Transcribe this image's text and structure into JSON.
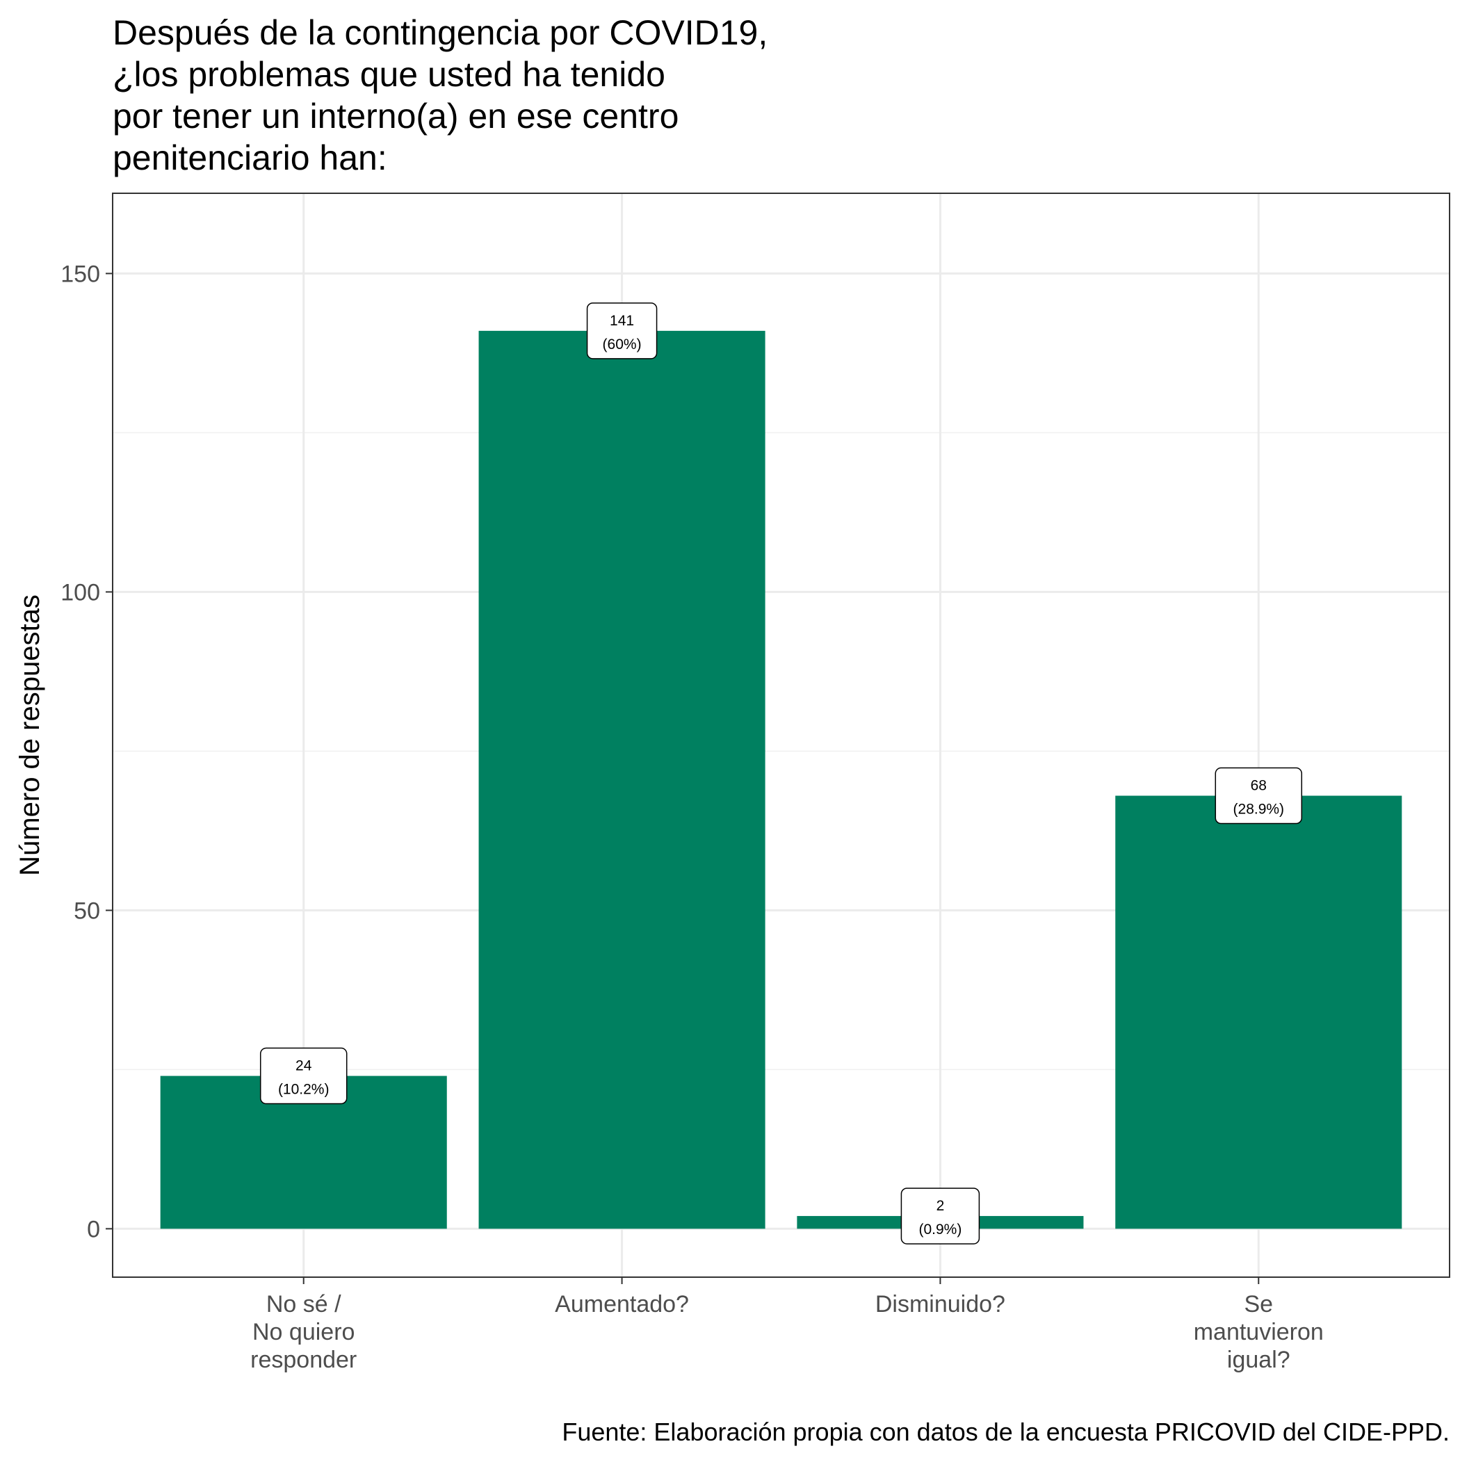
{
  "chart_data": {
    "type": "bar",
    "title_lines": [
      "Después de la contingencia por COVID19,",
      "¿los problemas que usted ha tenido",
      "por tener un interno(a) en ese centro",
      "penitenciario han:"
    ],
    "ylabel": "Número de respuestas",
    "xlabel": "",
    "categories": [
      [
        "No sé /",
        "No quiero",
        "responder"
      ],
      [
        "Aumentado?"
      ],
      [
        "Disminuido?"
      ],
      [
        "Se",
        "mantuvieron",
        "igual?"
      ]
    ],
    "values": [
      24,
      141,
      2,
      68
    ],
    "labels": [
      [
        "24",
        "(10.2%)"
      ],
      [
        "141",
        "(60%)"
      ],
      [
        "2",
        "(0.9%)"
      ],
      [
        "68",
        "(28.9%)"
      ]
    ],
    "yticks": [
      0,
      50,
      100,
      150
    ],
    "yticks_minor": [
      25,
      75,
      125
    ],
    "ylim": [
      -7.6,
      162.6
    ],
    "grid": true,
    "bar_color": "#008060",
    "caption": "Fuente: Elaboración propia con datos de la encuesta PRICOVID del CIDE-PPD."
  }
}
